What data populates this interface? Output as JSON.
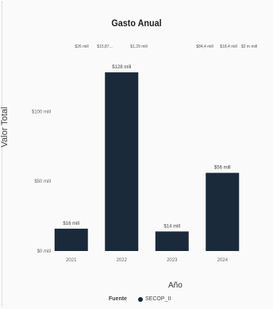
{
  "chart_data": {
    "type": "bar",
    "title": "Gasto Anual",
    "xlabel": "Año",
    "ylabel": "Valor Total",
    "categories": [
      "2021",
      "2022",
      "2023",
      "2024"
    ],
    "values": [
      16,
      128,
      14,
      56
    ],
    "value_labels": [
      "$16 mill",
      "$128 mill",
      "$14 mill",
      "$56 mill"
    ],
    "yticks": [
      {
        "value": 0,
        "label": "$0 mill"
      },
      {
        "value": 50,
        "label": "$50 mill"
      },
      {
        "value": 100,
        "label": "$100 mill"
      }
    ],
    "ylim": [
      0,
      140
    ],
    "grid": false,
    "bar_color": "#1b2a3a",
    "legend": {
      "title": "Fuente",
      "entries": [
        {
          "name": "SECOP_II",
          "color": "#1b2a3a"
        }
      ],
      "placement": "bottom"
    },
    "top_annotations": [
      "$26 mill",
      "$15,87...",
      "$1,29 mill",
      "$84,4 mill",
      "$18,4 mill",
      "$2 m mill"
    ]
  }
}
